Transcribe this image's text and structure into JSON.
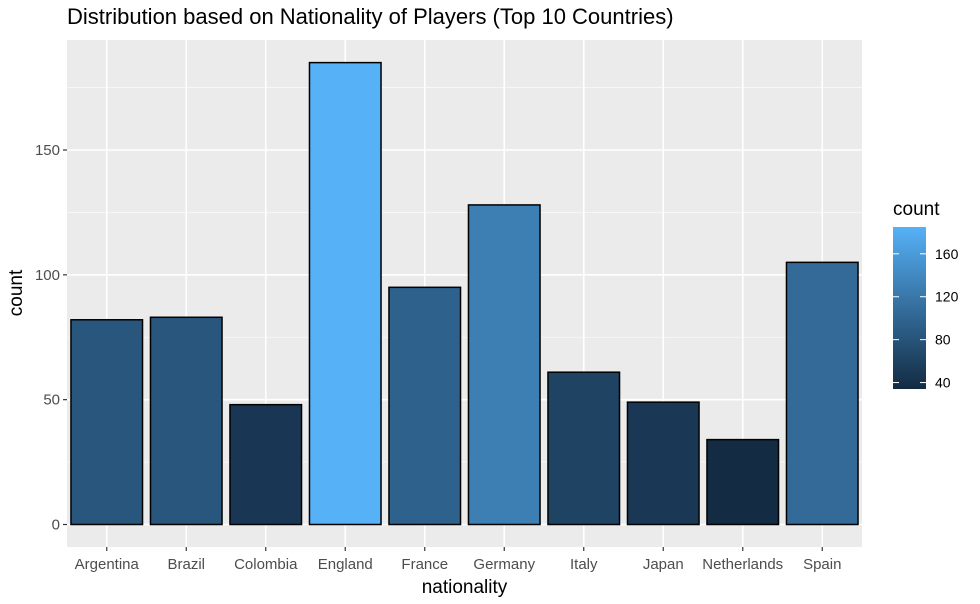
{
  "chart_data": {
    "type": "bar",
    "title": "Distribution based on Nationality of Players (Top 10 Countries)",
    "xlabel": "nationality",
    "ylabel": "count",
    "categories": [
      "Argentina",
      "Brazil",
      "Colombia",
      "England",
      "France",
      "Germany",
      "Italy",
      "Japan",
      "Netherlands",
      "Spain"
    ],
    "values": [
      82,
      83,
      48,
      185,
      95,
      128,
      61,
      49,
      34,
      105
    ],
    "ylim": [
      0,
      194
    ],
    "yticks": [
      0,
      50,
      100,
      150
    ],
    "grid": true,
    "legend": {
      "title": "count",
      "position": "right",
      "ticks": [
        40,
        80,
        120,
        160
      ],
      "range": [
        34,
        185
      ],
      "color_low": "#132B43",
      "color_high": "#56B1F7"
    },
    "colors": {
      "panel": "#EBEBEB",
      "grid": "#FFFFFF",
      "bar_outline": "#000000"
    }
  }
}
